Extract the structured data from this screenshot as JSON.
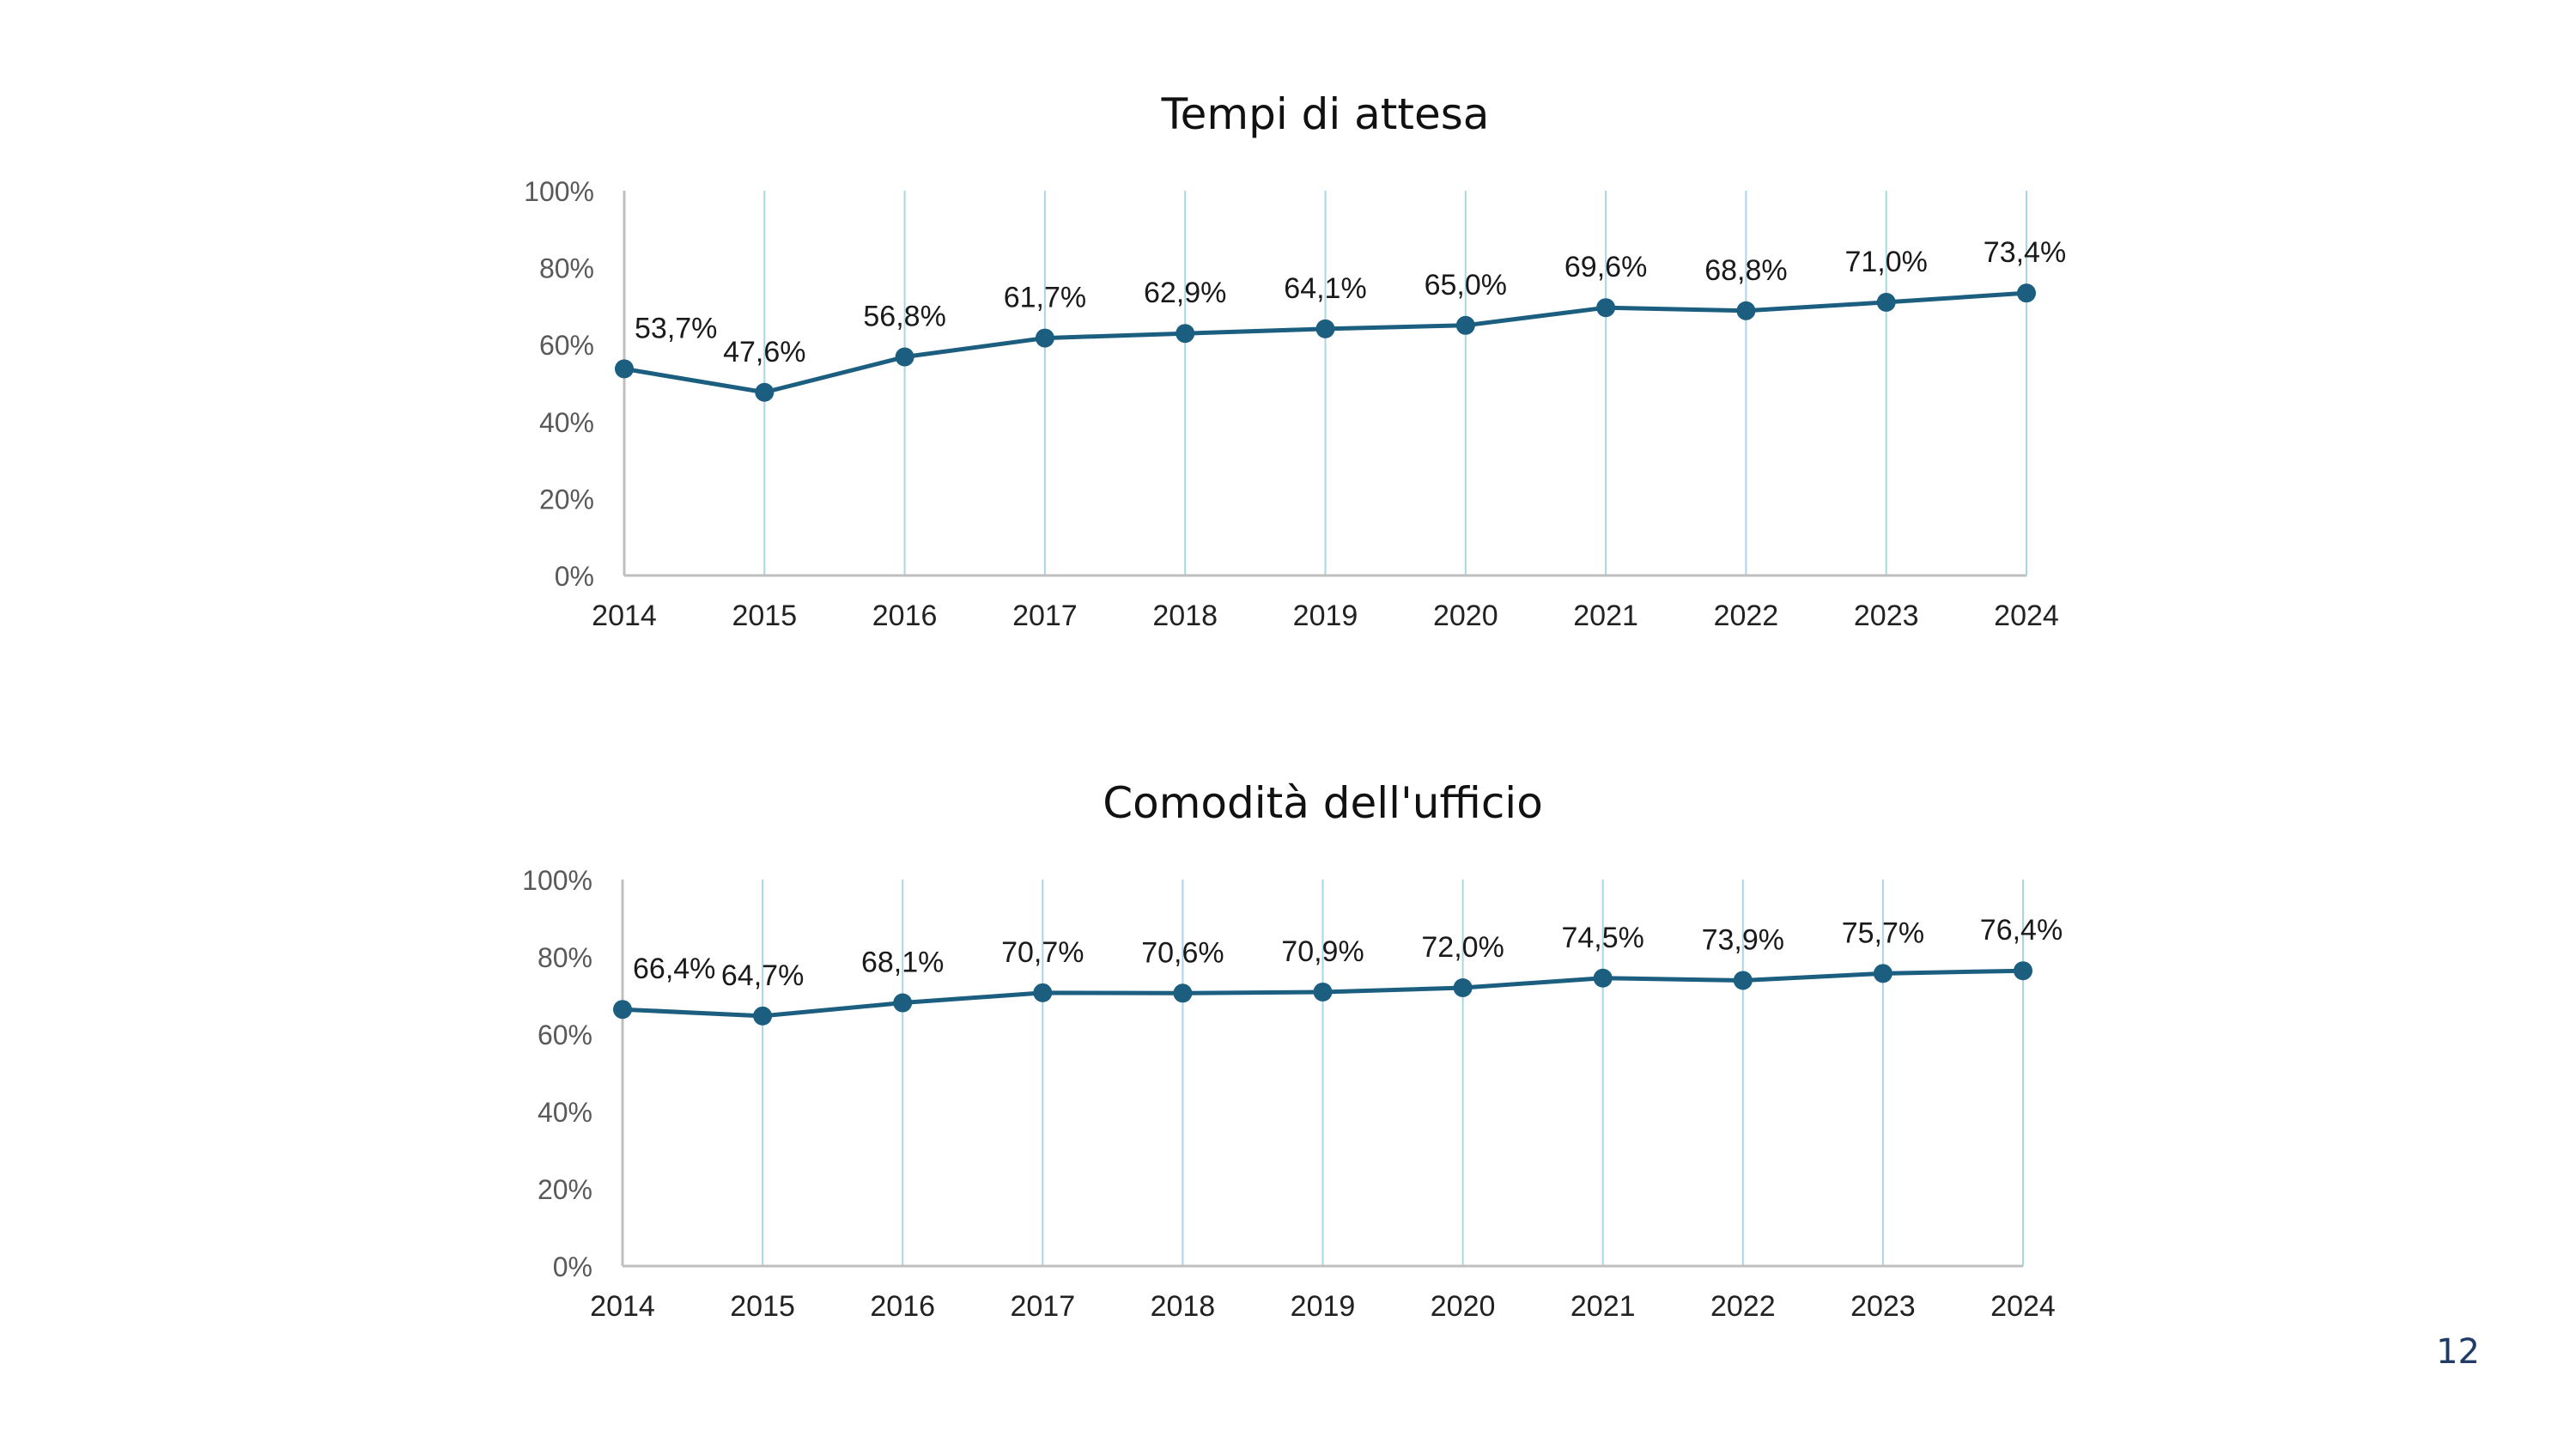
{
  "page_number": "12",
  "colors": {
    "series": "#1b5e80",
    "drop_line": "#a9d6e5",
    "axis": "#bfbfbf"
  },
  "chart_data": [
    {
      "type": "line",
      "title": "Tempi di attesa",
      "categories": [
        "2014",
        "2015",
        "2016",
        "2017",
        "2018",
        "2019",
        "2020",
        "2021",
        "2022",
        "2023",
        "2024"
      ],
      "values": [
        53.7,
        47.6,
        56.8,
        61.7,
        62.9,
        64.1,
        65.0,
        69.6,
        68.8,
        71.0,
        73.4
      ],
      "data_labels": [
        "53,7%",
        "47,6%",
        "56,8%",
        "61,7%",
        "62,9%",
        "64,1%",
        "65,0%",
        "69,6%",
        "68,8%",
        "71,0%",
        "73,4%"
      ],
      "y_ticks": [
        "0%",
        "20%",
        "40%",
        "60%",
        "80%",
        "100%"
      ],
      "ylim": [
        0,
        100
      ],
      "xlabel": "",
      "ylabel": "",
      "drop_lines": true,
      "markers": true,
      "grid": false
    },
    {
      "type": "line",
      "title": "Comodità dell'ufficio",
      "categories": [
        "2014",
        "2015",
        "2016",
        "2017",
        "2018",
        "2019",
        "2020",
        "2021",
        "2022",
        "2023",
        "2024"
      ],
      "values": [
        66.4,
        64.7,
        68.1,
        70.7,
        70.6,
        70.9,
        72.0,
        74.5,
        73.9,
        75.7,
        76.4
      ],
      "data_labels": [
        "66,4%",
        "64,7%",
        "68,1%",
        "70,7%",
        "70,6%",
        "70,9%",
        "72,0%",
        "74,5%",
        "73,9%",
        "75,7%",
        "76,4%"
      ],
      "y_ticks": [
        "0%",
        "20%",
        "40%",
        "60%",
        "80%",
        "100%"
      ],
      "ylim": [
        0,
        100
      ],
      "xlabel": "",
      "ylabel": "",
      "drop_lines": true,
      "markers": true,
      "grid": false
    }
  ]
}
